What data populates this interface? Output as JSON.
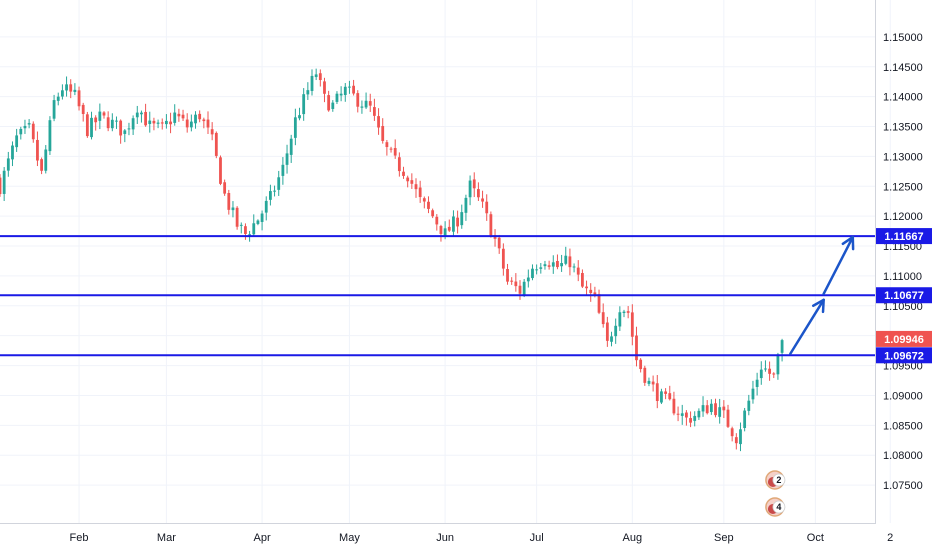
{
  "chart_data": {
    "type": "candlestick",
    "title": "",
    "xlabel": "",
    "ylabel": "",
    "ylim": [
      1.072,
      1.1535
    ],
    "x_ticks": [
      {
        "label": "Feb",
        "index": 19
      },
      {
        "label": "Mar",
        "index": 40
      },
      {
        "label": "Apr",
        "index": 63
      },
      {
        "label": "May",
        "index": 84
      },
      {
        "label": "Jun",
        "index": 107
      },
      {
        "label": "Jul",
        "index": 129
      },
      {
        "label": "Aug",
        "index": 152
      },
      {
        "label": "Sep",
        "index": 174
      },
      {
        "label": "Oct",
        "index": 196
      },
      {
        "label": "2",
        "index": 214
      }
    ],
    "y_ticks": [
      "1.15000",
      "1.14500",
      "1.14000",
      "1.13500",
      "1.13000",
      "1.12500",
      "1.12000",
      "1.11500",
      "1.11000",
      "1.10500",
      "1.10000",
      "1.09500",
      "1.09000",
      "1.08500",
      "1.08000",
      "1.07500"
    ],
    "horizontal_levels": [
      {
        "label": "1.11667",
        "value": 1.11667
      },
      {
        "label": "1.10677",
        "value": 1.10677
      },
      {
        "label": "1.09672",
        "value": 1.09672
      }
    ],
    "current_price": {
      "label": "1.09946",
      "value": 1.09946
    },
    "anchors": [
      [
        0,
        1.125
      ],
      [
        4,
        1.133
      ],
      [
        7,
        1.1345
      ],
      [
        10,
        1.127
      ],
      [
        13,
        1.139
      ],
      [
        15,
        1.1415
      ],
      [
        18,
        1.14
      ],
      [
        21,
        1.1345
      ],
      [
        24,
        1.1365
      ],
      [
        27,
        1.1355
      ],
      [
        30,
        1.134
      ],
      [
        33,
        1.1385
      ],
      [
        36,
        1.135
      ],
      [
        39,
        1.1345
      ],
      [
        42,
        1.137
      ],
      [
        45,
        1.135
      ],
      [
        48,
        1.137
      ],
      [
        51,
        1.1325
      ],
      [
        54,
        1.1235
      ],
      [
        57,
        1.1185
      ],
      [
        59,
        1.117
      ],
      [
        62,
        1.1195
      ],
      [
        65,
        1.123
      ],
      [
        68,
        1.128
      ],
      [
        71,
        1.136
      ],
      [
        74,
        1.141
      ],
      [
        76,
        1.144
      ],
      [
        78,
        1.1395
      ],
      [
        80,
        1.1385
      ],
      [
        83,
        1.141
      ],
      [
        86,
        1.1395
      ],
      [
        89,
        1.138
      ],
      [
        92,
        1.132
      ],
      [
        95,
        1.129
      ],
      [
        98,
        1.127
      ],
      [
        101,
        1.1225
      ],
      [
        104,
        1.12
      ],
      [
        107,
        1.117
      ],
      [
        110,
        1.1195
      ],
      [
        113,
        1.125
      ],
      [
        116,
        1.1215
      ],
      [
        119,
        1.116
      ],
      [
        122,
        1.109
      ],
      [
        125,
        1.1075
      ],
      [
        128,
        1.1115
      ],
      [
        131,
        1.113
      ],
      [
        134,
        1.1115
      ],
      [
        137,
        1.1125
      ],
      [
        140,
        1.108
      ],
      [
        143,
        1.106
      ],
      [
        146,
        1.0985
      ],
      [
        149,
        1.105
      ],
      [
        151,
        1.104
      ],
      [
        153,
        1.096
      ],
      [
        156,
        1.092
      ],
      [
        159,
        1.0895
      ],
      [
        162,
        1.088
      ],
      [
        165,
        1.086
      ],
      [
        168,
        1.087
      ],
      [
        171,
        1.0885
      ],
      [
        174,
        1.0865
      ],
      [
        177,
        1.083
      ],
      [
        180,
        1.089
      ],
      [
        183,
        1.095
      ],
      [
        186,
        1.093
      ],
      [
        188,
        1.0994
      ]
    ],
    "arrows": [
      {
        "from": [
          190,
          1.097
        ],
        "to": [
          198,
          1.106
        ]
      },
      {
        "from": [
          198,
          1.107
        ],
        "to": [
          205,
          1.1165
        ]
      }
    ],
    "events": [
      {
        "label": "2",
        "index": 187
      },
      {
        "label": "4",
        "index": 187
      }
    ]
  },
  "colors": {
    "up": "#26a69a",
    "down": "#ef5350",
    "level_line": "#1a1ae6",
    "arrow": "#1b55c9",
    "level_tag": "#1a1ae6",
    "price_tag": "#ef5350",
    "grid": "#f0f3fa",
    "axis_text": "#131722",
    "axis_line": "#d1d4dc"
  }
}
